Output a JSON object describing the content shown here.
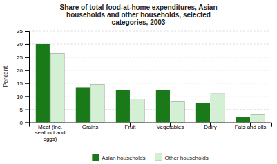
{
  "chart_data": {
    "type": "bar",
    "title": "Share of total food-at-home expenditures, Asian\nhouseholds and other households, selected\ncategories, 2003",
    "categories": [
      "Meat (inc.\nseafood and\neggs)",
      "Grains",
      "Fruit",
      "Vegetables",
      "Dairy",
      "Fats and oils"
    ],
    "series": [
      {
        "name": "Asian households",
        "color": "#1a7a1a",
        "values": [
          30,
          13.5,
          12.5,
          12.5,
          7.5,
          2
        ]
      },
      {
        "name": "Other households",
        "color": "#d4f0d4",
        "values": [
          26.5,
          14.5,
          9,
          8,
          11,
          3
        ]
      }
    ],
    "ylabel": "Percent",
    "ylim": [
      0,
      35
    ],
    "yticks": [
      0,
      5,
      10,
      15,
      20,
      25,
      30,
      35
    ],
    "grid": true,
    "legend": "bottom"
  }
}
